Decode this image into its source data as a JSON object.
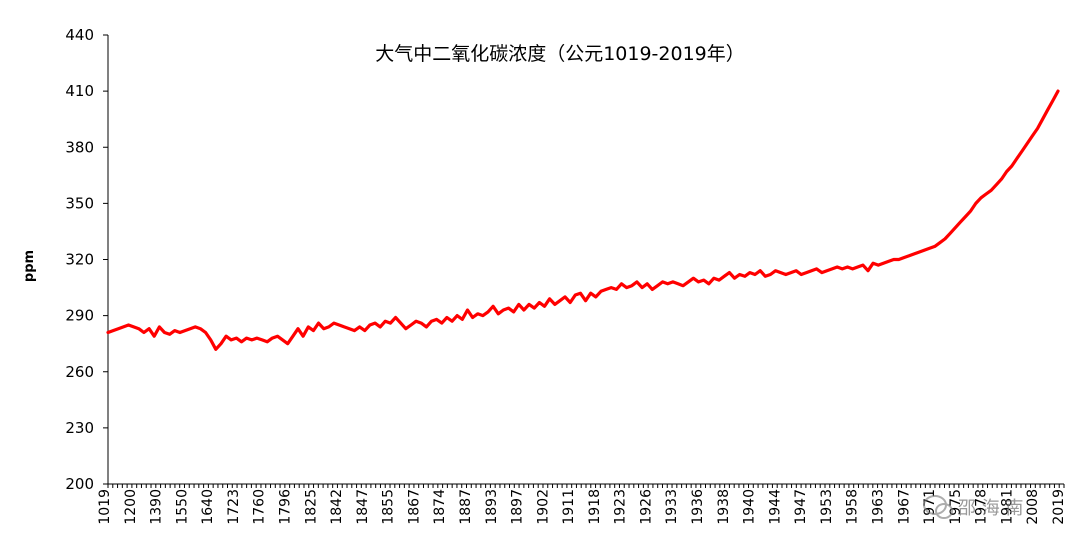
{
  "chart_data": {
    "type": "line",
    "title": "大气中二氧化碳浓度（公元1019-2019年）",
    "xlabel": "",
    "ylabel": "ppm",
    "ylim": [
      200,
      440
    ],
    "yticks": [
      200,
      230,
      260,
      290,
      320,
      350,
      380,
      410,
      440
    ],
    "grid": false,
    "legend": "none",
    "xtick_labels": [
      "1019",
      "1200",
      "1390",
      "1550",
      "1640",
      "1723",
      "1760",
      "1796",
      "1825",
      "1842",
      "1847",
      "1855",
      "1867",
      "1874",
      "1887",
      "1893",
      "1897",
      "1902",
      "1911",
      "1918",
      "1923",
      "1926",
      "1933",
      "1936",
      "1938",
      "1940",
      "1944",
      "1947",
      "1953",
      "1958",
      "1963",
      "1967",
      "1971",
      "1975",
      "1978",
      "1981",
      "2008",
      "2019"
    ],
    "series": [
      {
        "color": "#ff0000",
        "y": [
          281,
          282,
          283,
          284,
          285,
          284,
          283,
          281,
          283,
          279,
          284,
          281,
          280,
          282,
          281,
          282,
          283,
          284,
          283,
          281,
          277,
          272,
          275,
          279,
          277,
          278,
          276,
          278,
          277,
          278,
          277,
          276,
          278,
          279,
          277,
          275,
          279,
          283,
          279,
          284,
          282,
          286,
          283,
          284,
          286,
          285,
          284,
          283,
          282,
          284,
          282,
          285,
          286,
          284,
          287,
          286,
          289,
          286,
          283,
          285,
          287,
          286,
          284,
          287,
          288,
          286,
          289,
          287,
          290,
          288,
          293,
          289,
          291,
          290,
          292,
          295,
          291,
          293,
          294,
          292,
          296,
          293,
          296,
          294,
          297,
          295,
          299,
          296,
          298,
          300,
          297,
          301,
          302,
          298,
          302,
          300,
          303,
          304,
          305,
          304,
          307,
          305,
          306,
          308,
          305,
          307,
          304,
          306,
          308,
          307,
          308,
          307,
          306,
          308,
          310,
          308,
          309,
          307,
          310,
          309,
          311,
          313,
          310,
          312,
          311,
          313,
          312,
          314,
          311,
          312,
          314,
          313,
          312,
          313,
          314,
          312,
          313,
          314,
          315,
          313,
          314,
          315,
          316,
          315,
          316,
          315,
          316,
          317,
          314,
          318,
          317,
          318,
          319,
          320,
          320,
          321,
          322,
          323,
          324,
          325,
          326,
          327,
          329,
          331,
          334,
          337,
          340,
          343,
          346,
          350,
          353,
          355,
          357,
          360,
          363,
          367,
          370,
          374,
          378,
          382,
          386,
          390,
          395,
          400,
          405,
          410
        ]
      }
    ]
  },
  "watermark": {
    "text": "邵 海 南",
    "icon": "wechat-logo-icon"
  }
}
